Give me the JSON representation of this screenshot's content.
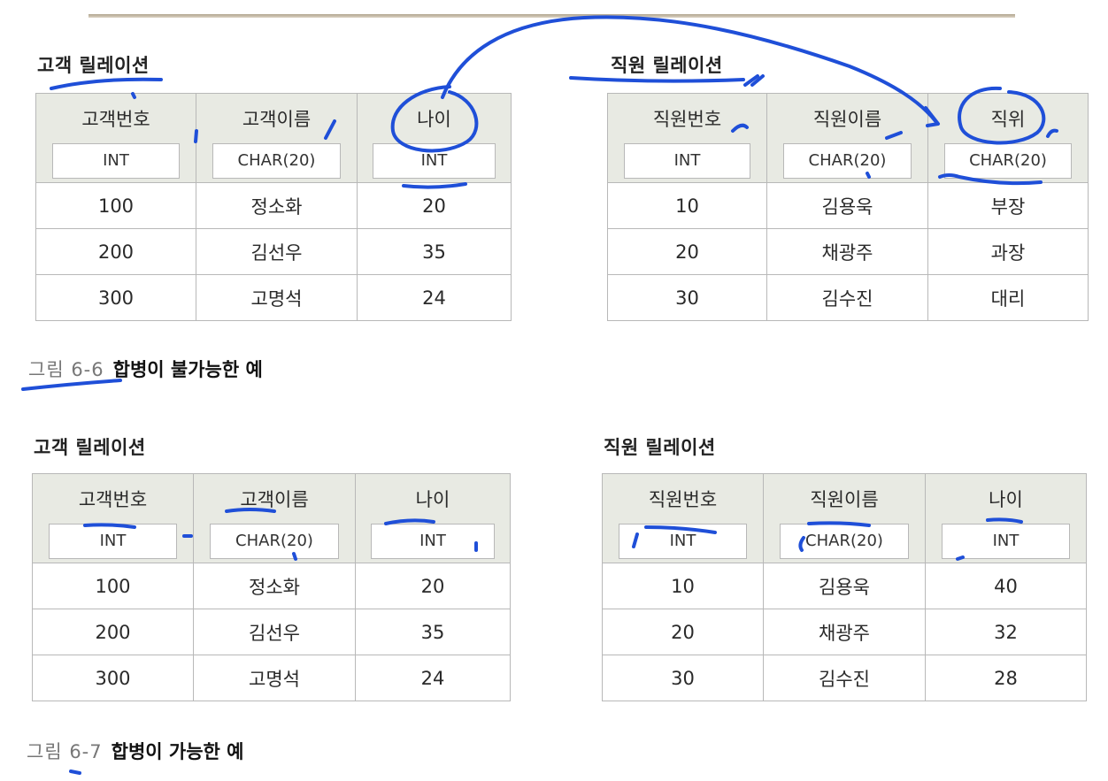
{
  "figures": [
    {
      "caption": {
        "number": "그림 6-6",
        "text": "합병이 불가능한 예"
      },
      "relations": [
        {
          "title": "고객 릴레이션",
          "columns": [
            {
              "name": "고객번호",
              "type": "INT"
            },
            {
              "name": "고객이름",
              "type": "CHAR(20)"
            },
            {
              "name": "나이",
              "type": "INT"
            }
          ],
          "rows": [
            [
              "100",
              "정소화",
              "20"
            ],
            [
              "200",
              "김선우",
              "35"
            ],
            [
              "300",
              "고명석",
              "24"
            ]
          ]
        },
        {
          "title": "직원 릴레이션",
          "columns": [
            {
              "name": "직원번호",
              "type": "INT"
            },
            {
              "name": "직원이름",
              "type": "CHAR(20)"
            },
            {
              "name": "직위",
              "type": "CHAR(20)"
            }
          ],
          "rows": [
            [
              "10",
              "김용욱",
              "부장"
            ],
            [
              "20",
              "채광주",
              "과장"
            ],
            [
              "30",
              "김수진",
              "대리"
            ]
          ]
        }
      ]
    },
    {
      "caption": {
        "number": "그림 6-7",
        "text": "합병이 가능한 예"
      },
      "relations": [
        {
          "title": "고객 릴레이션",
          "columns": [
            {
              "name": "고객번호",
              "type": "INT"
            },
            {
              "name": "고객이름",
              "type": "CHAR(20)"
            },
            {
              "name": "나이",
              "type": "INT"
            }
          ],
          "rows": [
            [
              "100",
              "정소화",
              "20"
            ],
            [
              "200",
              "김선우",
              "35"
            ],
            [
              "300",
              "고명석",
              "24"
            ]
          ]
        },
        {
          "title": "직원 릴레이션",
          "columns": [
            {
              "name": "직원번호",
              "type": "INT"
            },
            {
              "name": "직원이름",
              "type": "CHAR(20)"
            },
            {
              "name": "나이",
              "type": "INT"
            }
          ],
          "rows": [
            [
              "10",
              "김용욱",
              "40"
            ],
            [
              "20",
              "채광주",
              "32"
            ],
            [
              "30",
              "김수진",
              "28"
            ]
          ]
        }
      ]
    }
  ],
  "colors": {
    "ink": "#1f4fd8",
    "header_bg": "#e8eae3",
    "border": "#b8b8b8"
  }
}
